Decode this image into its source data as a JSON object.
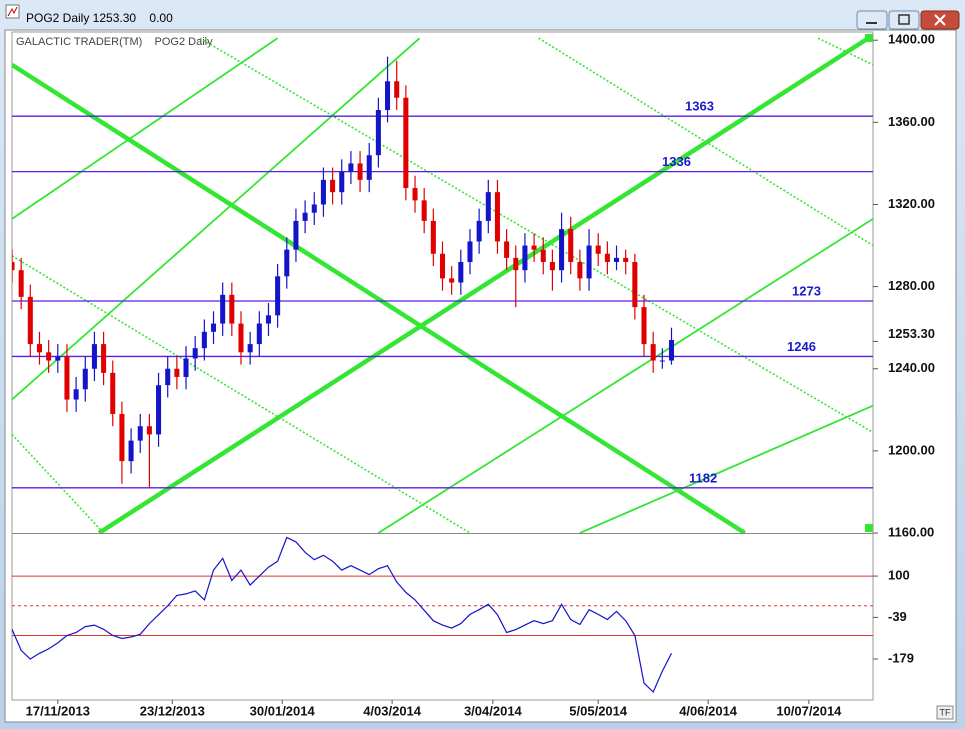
{
  "chart_data": {
    "type": "candlestick",
    "title": "POG2 Daily 1253.30    0.00",
    "subtitle": "GALACTIC TRADER(TM)    POG2 Daily",
    "x": [
      0,
      2,
      4,
      6,
      8,
      10,
      12,
      14,
      16,
      18,
      20,
      22,
      24,
      26,
      28,
      30,
      32,
      34,
      36,
      38,
      40,
      42,
      44,
      46,
      48,
      50,
      52,
      54,
      56,
      58,
      60,
      62,
      64,
      66,
      68,
      70,
      72,
      74,
      76,
      78,
      80,
      82,
      84,
      86,
      88,
      90,
      92,
      94,
      96,
      98,
      100,
      102,
      104,
      106,
      108,
      110,
      112,
      114,
      116,
      118,
      120,
      122,
      124,
      126,
      128,
      130,
      132,
      134,
      136,
      138,
      140,
      142,
      144
    ],
    "open": [
      1292,
      1288,
      1275,
      1252,
      1248,
      1244,
      1246,
      1225,
      1230,
      1240,
      1252,
      1238,
      1218,
      1195,
      1205,
      1212,
      1208,
      1232,
      1240,
      1236,
      1245,
      1250,
      1258,
      1262,
      1276,
      1262,
      1248,
      1252,
      1262,
      1266,
      1285,
      1298,
      1312,
      1316,
      1320,
      1332,
      1326,
      1336,
      1340,
      1332,
      1344,
      1366,
      1380,
      1372,
      1328,
      1322,
      1312,
      1296,
      1284,
      1282,
      1292,
      1302,
      1312,
      1326,
      1302,
      1294,
      1288,
      1300,
      1298,
      1292,
      1288,
      1308,
      1292,
      1284,
      1300,
      1296,
      1292,
      1294,
      1292,
      1270,
      1252,
      1244,
      1244
    ],
    "high": [
      1298,
      1294,
      1281,
      1258,
      1254,
      1252,
      1252,
      1236,
      1246,
      1258,
      1258,
      1244,
      1224,
      1211,
      1218,
      1218,
      1238,
      1246,
      1246,
      1251,
      1256,
      1264,
      1268,
      1282,
      1282,
      1268,
      1258,
      1268,
      1272,
      1291,
      1304,
      1318,
      1322,
      1326,
      1338,
      1338,
      1342,
      1346,
      1346,
      1350,
      1372,
      1392,
      1390,
      1378,
      1334,
      1328,
      1318,
      1302,
      1290,
      1298,
      1308,
      1318,
      1332,
      1332,
      1308,
      1300,
      1306,
      1306,
      1304,
      1298,
      1316,
      1314,
      1298,
      1308,
      1306,
      1302,
      1300,
      1298,
      1296,
      1276,
      1258,
      1250,
      1260
    ],
    "low": [
      1282,
      1269,
      1246,
      1242,
      1238,
      1238,
      1219,
      1219,
      1224,
      1234,
      1232,
      1212,
      1184,
      1189,
      1199,
      1182,
      1202,
      1226,
      1230,
      1230,
      1239,
      1244,
      1252,
      1256,
      1256,
      1242,
      1242,
      1246,
      1256,
      1260,
      1279,
      1292,
      1306,
      1310,
      1314,
      1320,
      1320,
      1330,
      1326,
      1326,
      1338,
      1360,
      1366,
      1322,
      1316,
      1306,
      1290,
      1278,
      1276,
      1276,
      1286,
      1296,
      1306,
      1296,
      1288,
      1270,
      1282,
      1292,
      1286,
      1278,
      1282,
      1286,
      1278,
      1278,
      1290,
      1286,
      1288,
      1286,
      1264,
      1246,
      1238,
      1240,
      1242
    ],
    "close": [
      1288,
      1275,
      1252,
      1248,
      1244,
      1246,
      1225,
      1230,
      1240,
      1252,
      1238,
      1218,
      1195,
      1205,
      1212,
      1208,
      1232,
      1240,
      1236,
      1245,
      1250,
      1258,
      1262,
      1276,
      1262,
      1248,
      1252,
      1262,
      1266,
      1285,
      1298,
      1312,
      1316,
      1320,
      1332,
      1326,
      1336,
      1340,
      1332,
      1344,
      1366,
      1380,
      1372,
      1328,
      1322,
      1312,
      1296,
      1284,
      1282,
      1292,
      1302,
      1312,
      1326,
      1302,
      1294,
      1288,
      1300,
      1298,
      1292,
      1288,
      1308,
      1292,
      1284,
      1300,
      1296,
      1292,
      1294,
      1292,
      1270,
      1252,
      1244,
      1244,
      1254
    ],
    "up_color": "#1414c8",
    "down_color": "#e00000",
    "xlim": [
      0,
      188
    ],
    "xticks": [
      {
        "value": 10,
        "label": "17/11/2013"
      },
      {
        "value": 35,
        "label": "23/12/2013"
      },
      {
        "value": 59,
        "label": "30/01/2014"
      },
      {
        "value": 83,
        "label": "4/03/2014"
      },
      {
        "value": 105,
        "label": "3/04/2014"
      },
      {
        "value": 128,
        "label": "5/05/2014"
      },
      {
        "value": 152,
        "label": "4/06/2014"
      },
      {
        "value": 174,
        "label": "10/07/2014"
      }
    ],
    "ylim": [
      1160,
      1404
    ],
    "yticks": [
      {
        "value": 1160,
        "label": "1160.00"
      },
      {
        "value": 1200,
        "label": "1200.00"
      },
      {
        "value": 1240,
        "label": "1240.00"
      },
      {
        "value": 1280,
        "label": "1280.00"
      },
      {
        "value": 1320,
        "label": "1320.00"
      },
      {
        "value": 1360,
        "label": "1360.00"
      },
      {
        "value": 1400,
        "label": "1400.00"
      }
    ],
    "last_price": {
      "value": 1253.3,
      "label": "1253.30"
    },
    "price_levels": [
      1363,
      1336,
      1273,
      1246,
      1182
    ],
    "level_color": "#5a1ee6",
    "level_label_color": "#1a1acc",
    "overlay_color": "#33e633",
    "overlays": [
      {
        "style": "thick",
        "x": [
          19,
          187
        ],
        "y": [
          1160,
          1401
        ]
      },
      {
        "style": "thick",
        "x": [
          0,
          160
        ],
        "y": [
          1388,
          1160
        ]
      },
      {
        "style": "thin",
        "x": [
          0,
          58
        ],
        "y": [
          1313,
          1401
        ]
      },
      {
        "style": "thin",
        "x": [
          0,
          89
        ],
        "y": [
          1225,
          1401
        ]
      },
      {
        "style": "thin",
        "x": [
          80,
          188
        ],
        "y": [
          1160,
          1313
        ]
      },
      {
        "style": "thin",
        "x": [
          124,
          188
        ],
        "y": [
          1160,
          1222
        ]
      },
      {
        "style": "dotted",
        "x": [
          0,
          100
        ],
        "y": [
          1295,
          1160
        ]
      },
      {
        "style": "dotted",
        "x": [
          0,
          20
        ],
        "y": [
          1208,
          1160
        ]
      },
      {
        "style": "dotted",
        "x": [
          41,
          188
        ],
        "y": [
          1401,
          1209
        ]
      },
      {
        "style": "dotted",
        "x": [
          115,
          188
        ],
        "y": [
          1401,
          1300
        ]
      },
      {
        "style": "dotted",
        "x": [
          176,
          188
        ],
        "y": [
          1401,
          1388
        ]
      }
    ],
    "indicator": {
      "color": "#1414c8",
      "values": [
        -79,
        -150,
        -179,
        -160,
        -145,
        -125,
        -100,
        -90,
        -70,
        -65,
        -79,
        -100,
        -110,
        -105,
        -96,
        -60,
        -30,
        0,
        35,
        40,
        50,
        20,
        120,
        160,
        85,
        120,
        70,
        100,
        130,
        150,
        230,
        215,
        180,
        155,
        170,
        150,
        120,
        135,
        120,
        105,
        125,
        135,
        80,
        45,
        20,
        -15,
        -50,
        -65,
        -75,
        -60,
        -29,
        -13,
        5,
        -30,
        -90,
        -80,
        -65,
        -50,
        -60,
        -50,
        5,
        -46,
        -63,
        -13,
        -29,
        -46,
        -19,
        -50,
        -100,
        -260,
        -290,
        -220,
        -160
      ],
      "ylim": [
        -317,
        245
      ],
      "yticks": [
        100,
        -39,
        -179
      ],
      "levels": [
        100,
        0,
        -100
      ],
      "level_dashed": [
        false,
        true,
        false
      ],
      "level_color": "#e03030"
    }
  }
}
